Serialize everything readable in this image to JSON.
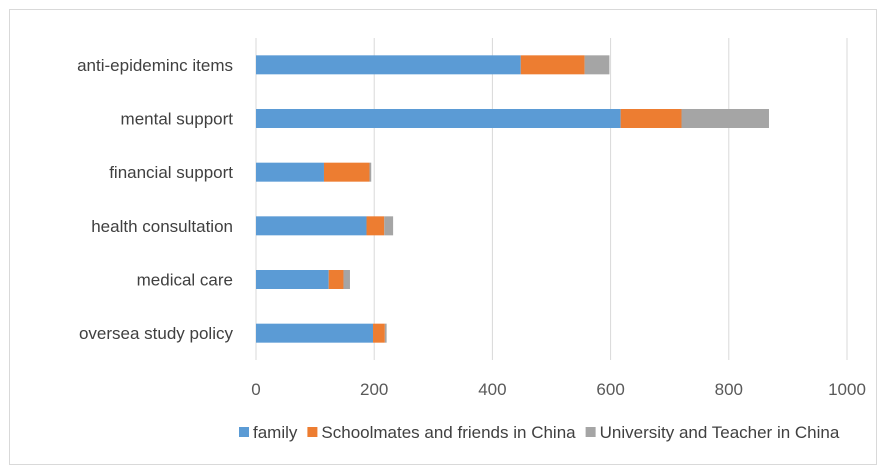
{
  "chart_data": {
    "type": "bar",
    "orientation": "horizontal",
    "stacked": true,
    "categories": [
      "anti-epideminc items",
      "mental support",
      "financial support",
      "health consultation",
      "medical care",
      "oversea study policy"
    ],
    "series": [
      {
        "name": "family",
        "values": [
          448,
          617,
          115,
          187,
          123,
          198
        ],
        "color": "#5B9BD5"
      },
      {
        "name": "Schoolmates and friends in China",
        "values": [
          108,
          103,
          77,
          30,
          25,
          20
        ],
        "color": "#ED7D31"
      },
      {
        "name": "University and Teacher in China",
        "values": [
          42,
          148,
          3,
          15,
          11,
          3
        ],
        "color": "#A5A5A5"
      }
    ],
    "xticks": [
      "0",
      "200",
      "400",
      "600",
      "800",
      "1000"
    ],
    "xlim": [
      0,
      1000
    ],
    "grid": "vertical",
    "legend": "bottom"
  }
}
